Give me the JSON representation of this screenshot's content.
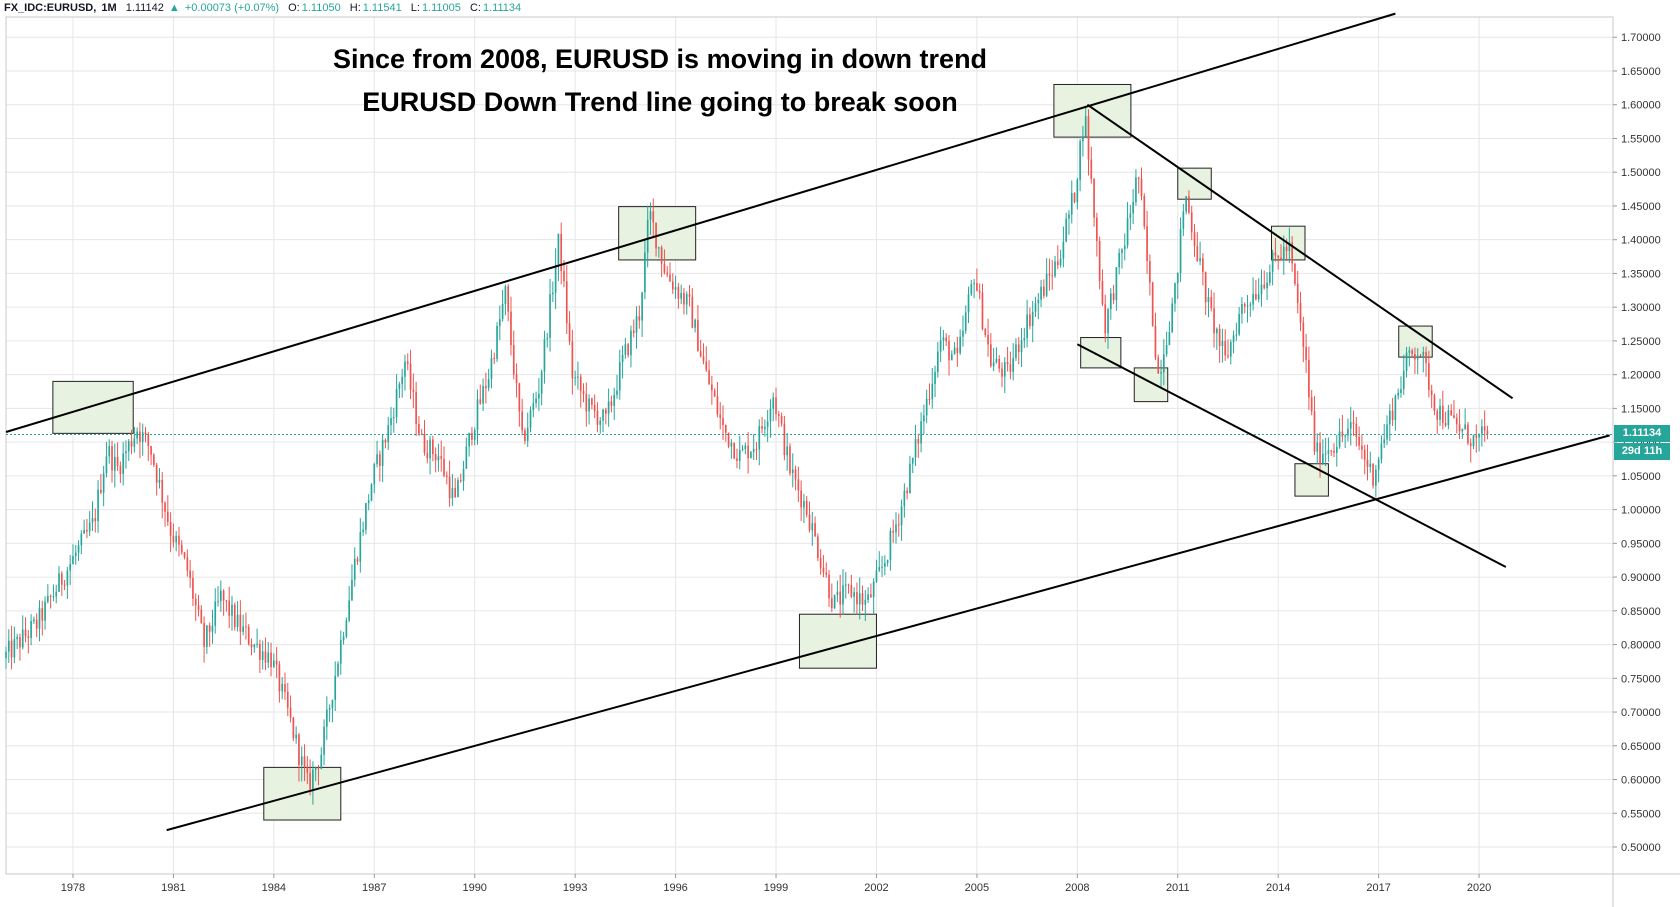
{
  "header": {
    "symbol": "FX_IDC:EURUSD,",
    "interval": "1M",
    "last": "1.11142",
    "change_arrow": "▲",
    "change": "+0.00073 (+0.07%)",
    "o_label": "O:",
    "o": "1.11050",
    "h_label": "H:",
    "h": "1.11541",
    "l_label": "L:",
    "l": "1.11005",
    "c_label": "C:",
    "c": "1.11134"
  },
  "annotation": {
    "line1": "Since from 2008, EURUSD is moving in down trend",
    "line2": "EURUSD Down Trend line going to break soon"
  },
  "price_tag": {
    "price": "1.11134",
    "countdown": "29d 11h"
  },
  "colors": {
    "up": "#26a69a",
    "down": "#ef5350",
    "box_fill": "#e8f2e0",
    "trendline": "#000000",
    "grid": "#e6e6e6",
    "axis_text": "#333333"
  },
  "chart_data": {
    "type": "candlestick",
    "symbol": "FX_IDC:EURUSD",
    "interval": "1M",
    "ylim": [
      0.46,
      1.73
    ],
    "xlim": [
      1976.0,
      2024.0
    ],
    "y_ticks": [
      "0.50000",
      "0.55000",
      "0.60000",
      "0.65000",
      "0.70000",
      "0.75000",
      "0.80000",
      "0.85000",
      "0.90000",
      "0.95000",
      "1.00000",
      "1.05000",
      "1.10000",
      "1.15000",
      "1.20000",
      "1.25000",
      "1.30000",
      "1.35000",
      "1.40000",
      "1.45000",
      "1.50000",
      "1.55000",
      "1.60000",
      "1.65000",
      "1.70000"
    ],
    "x_ticks": [
      "1978",
      "1981",
      "1984",
      "1987",
      "1990",
      "1993",
      "1996",
      "1999",
      "2002",
      "2005",
      "2008",
      "2011",
      "2014",
      "2017",
      "2020"
    ],
    "last_price": 1.11134,
    "price_path": [
      [
        1976.0,
        0.78
      ],
      [
        1977.0,
        0.83
      ],
      [
        1978.0,
        0.92
      ],
      [
        1978.7,
        0.98
      ],
      [
        1979.1,
        1.09
      ],
      [
        1979.4,
        1.06
      ],
      [
        1980.0,
        1.12
      ],
      [
        1980.4,
        1.09
      ],
      [
        1981.0,
        0.97
      ],
      [
        1981.5,
        0.91
      ],
      [
        1982.0,
        0.8
      ],
      [
        1982.5,
        0.87
      ],
      [
        1983.0,
        0.83
      ],
      [
        1983.5,
        0.8
      ],
      [
        1984.0,
        0.78
      ],
      [
        1984.5,
        0.7
      ],
      [
        1985.1,
        0.59
      ],
      [
        1985.5,
        0.64
      ],
      [
        1986.0,
        0.78
      ],
      [
        1986.5,
        0.92
      ],
      [
        1987.0,
        1.04
      ],
      [
        1987.5,
        1.12
      ],
      [
        1988.0,
        1.22
      ],
      [
        1988.5,
        1.1
      ],
      [
        1989.0,
        1.08
      ],
      [
        1989.5,
        1.01
      ],
      [
        1990.0,
        1.12
      ],
      [
        1990.5,
        1.2
      ],
      [
        1991.0,
        1.32
      ],
      [
        1991.5,
        1.1
      ],
      [
        1992.0,
        1.18
      ],
      [
        1992.6,
        1.4
      ],
      [
        1993.0,
        1.2
      ],
      [
        1993.5,
        1.15
      ],
      [
        1994.0,
        1.13
      ],
      [
        1994.5,
        1.22
      ],
      [
        1995.0,
        1.29
      ],
      [
        1995.3,
        1.44
      ],
      [
        1995.8,
        1.35
      ],
      [
        1996.5,
        1.3
      ],
      [
        1997.0,
        1.2
      ],
      [
        1997.5,
        1.12
      ],
      [
        1998.0,
        1.08
      ],
      [
        1998.5,
        1.1
      ],
      [
        1999.0,
        1.17
      ],
      [
        1999.5,
        1.06
      ],
      [
        2000.0,
        1.0
      ],
      [
        2000.8,
        0.86
      ],
      [
        2001.3,
        0.88
      ],
      [
        2001.8,
        0.86
      ],
      [
        2002.3,
        0.92
      ],
      [
        2002.8,
        1.0
      ],
      [
        2003.3,
        1.1
      ],
      [
        2004.0,
        1.25
      ],
      [
        2004.5,
        1.22
      ],
      [
        2005.0,
        1.35
      ],
      [
        2005.5,
        1.22
      ],
      [
        2006.0,
        1.2
      ],
      [
        2006.5,
        1.27
      ],
      [
        2007.0,
        1.32
      ],
      [
        2007.5,
        1.37
      ],
      [
        2008.0,
        1.47
      ],
      [
        2008.3,
        1.59
      ],
      [
        2008.9,
        1.27
      ],
      [
        2009.5,
        1.4
      ],
      [
        2009.9,
        1.5
      ],
      [
        2010.5,
        1.2
      ],
      [
        2011.0,
        1.32
      ],
      [
        2011.3,
        1.47
      ],
      [
        2012.0,
        1.3
      ],
      [
        2012.5,
        1.22
      ],
      [
        2013.0,
        1.3
      ],
      [
        2013.5,
        1.33
      ],
      [
        2014.0,
        1.37
      ],
      [
        2014.4,
        1.39
      ],
      [
        2014.9,
        1.22
      ],
      [
        2015.2,
        1.08
      ],
      [
        2015.8,
        1.1
      ],
      [
        2016.3,
        1.12
      ],
      [
        2016.9,
        1.05
      ],
      [
        2017.5,
        1.15
      ],
      [
        2018.0,
        1.23
      ],
      [
        2018.3,
        1.24
      ],
      [
        2018.8,
        1.15
      ],
      [
        2019.5,
        1.12
      ],
      [
        2020.0,
        1.1
      ],
      [
        2020.3,
        1.11134
      ]
    ],
    "lines": [
      {
        "name": "channel-upper",
        "from": [
          1976.0,
          1.115
        ],
        "to": [
          2017.5,
          1.735
        ]
      },
      {
        "name": "channel-lower",
        "from": [
          1980.8,
          0.525
        ],
        "to": [
          2023.9,
          1.11
        ]
      },
      {
        "name": "downtrend-upper",
        "from": [
          2008.3,
          1.6
        ],
        "to": [
          2021.0,
          1.165
        ]
      },
      {
        "name": "downtrend-lower",
        "from": [
          2008.0,
          1.245
        ],
        "to": [
          2020.8,
          0.915
        ]
      }
    ],
    "boxes": [
      {
        "name": "peak-1980",
        "x": [
          1977.4,
          1979.8
        ],
        "y": [
          1.113,
          1.19
        ]
      },
      {
        "name": "trough-1985",
        "x": [
          1983.7,
          1986.0
        ],
        "y": [
          0.54,
          0.618
        ]
      },
      {
        "name": "peak-1995",
        "x": [
          1994.3,
          1996.6
        ],
        "y": [
          1.37,
          1.449
        ]
      },
      {
        "name": "trough-2001",
        "x": [
          1999.7,
          2002.0
        ],
        "y": [
          0.765,
          0.845
        ]
      },
      {
        "name": "peak-2008",
        "x": [
          2007.3,
          2009.6
        ],
        "y": [
          1.552,
          1.63
        ]
      },
      {
        "name": "low-2008",
        "x": [
          2008.1,
          2009.3
        ],
        "y": [
          1.21,
          1.255
        ]
      },
      {
        "name": "high-2011",
        "x": [
          2011.0,
          2012.0
        ],
        "y": [
          1.46,
          1.506
        ]
      },
      {
        "name": "low-2010",
        "x": [
          2009.7,
          2010.7
        ],
        "y": [
          1.16,
          1.21
        ]
      },
      {
        "name": "high-2014",
        "x": [
          2013.8,
          2014.8
        ],
        "y": [
          1.37,
          1.42
        ]
      },
      {
        "name": "low-2015",
        "x": [
          2014.5,
          2015.5
        ],
        "y": [
          1.02,
          1.068
        ]
      },
      {
        "name": "high-2018",
        "x": [
          2017.6,
          2018.6
        ],
        "y": [
          1.226,
          1.272
        ]
      }
    ]
  }
}
